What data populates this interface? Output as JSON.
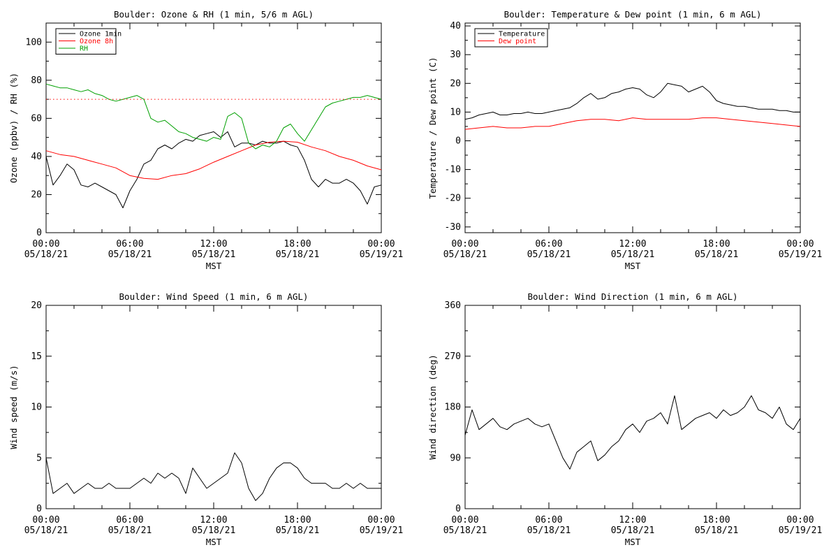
{
  "chart_data": [
    {
      "type": "line",
      "title": "Boulder: Ozone & RH (1 min, 5/6 m AGL)",
      "xlabel": "MST",
      "ylabel": "Ozone (ppbv) / RH (%)",
      "ylim": [
        0,
        110
      ],
      "yticks": [
        0,
        20,
        40,
        60,
        80,
        100
      ],
      "xticks": [
        "00:00\n05/18/21",
        "06:00\n05/18/21",
        "12:00\n05/18/21",
        "18:00\n05/18/21",
        "00:00\n05/19/21"
      ],
      "legend_position": "top-left",
      "grid": false,
      "series": [
        {
          "name": "Ozone 1min",
          "color": "#000000",
          "x": [
            0,
            0.5,
            1,
            1.5,
            2,
            2.5,
            3,
            3.5,
            4,
            4.5,
            5,
            5.5,
            6,
            6.5,
            7,
            7.5,
            8,
            8.5,
            9,
            9.5,
            10,
            10.5,
            11,
            11.5,
            12,
            12.5,
            13,
            13.5,
            14,
            14.5,
            15,
            15.5,
            16,
            16.5,
            17,
            17.5,
            18,
            18.5,
            19,
            19.5,
            20,
            20.5,
            21,
            21.5,
            22,
            22.5,
            23,
            23.5,
            24
          ],
          "y": [
            40,
            25,
            30,
            36,
            33,
            25,
            24,
            26,
            24,
            22,
            20,
            13,
            22,
            28,
            36,
            38,
            44,
            46,
            44,
            47,
            49,
            48,
            51,
            52,
            53,
            50,
            53,
            45,
            47,
            47,
            46,
            48,
            47,
            47,
            48,
            46,
            45,
            38,
            28,
            24,
            28,
            26,
            26,
            28,
            26,
            22,
            15,
            24,
            25
          ]
        },
        {
          "name": "Ozone 8h",
          "color": "#ff0000",
          "x": [
            0,
            1,
            2,
            3,
            4,
            5,
            6,
            7,
            8,
            9,
            10,
            11,
            12,
            13,
            14,
            15,
            16,
            17,
            18,
            19,
            20,
            21,
            22,
            23,
            24
          ],
          "y": [
            43,
            41,
            40,
            38,
            36,
            34,
            30,
            28.5,
            28,
            30,
            31,
            33.5,
            37,
            40,
            43,
            46,
            47.5,
            48,
            47.5,
            45,
            43,
            40,
            38,
            35,
            33
          ]
        },
        {
          "name": "RH",
          "color": "#00a000",
          "x": [
            0,
            0.5,
            1,
            1.5,
            2,
            2.5,
            3,
            3.5,
            4,
            4.5,
            5,
            5.5,
            6,
            6.5,
            7,
            7.5,
            8,
            8.5,
            9,
            9.5,
            10,
            10.5,
            11,
            11.5,
            12,
            12.5,
            13,
            13.5,
            14,
            14.5,
            15,
            15.5,
            16,
            16.5,
            17,
            17.5,
            18,
            18.5,
            19,
            19.5,
            20,
            20.5,
            21,
            21.5,
            22,
            22.5,
            23,
            23.5,
            24
          ],
          "y": [
            78,
            77,
            76,
            76,
            75,
            74,
            75,
            73,
            72,
            70,
            69,
            70,
            71,
            72,
            70,
            60,
            58,
            59,
            56,
            53,
            52,
            50,
            49,
            48,
            50,
            49,
            61,
            63,
            60,
            47,
            44,
            46,
            45,
            48,
            55,
            57,
            52,
            48,
            54,
            60,
            66,
            68,
            69,
            70,
            71,
            71,
            72,
            71,
            70
          ]
        },
        {
          "name": "",
          "color": "#ff0000",
          "dotted": true,
          "x": [
            0,
            24
          ],
          "y": [
            70,
            70
          ]
        }
      ]
    },
    {
      "type": "line",
      "title": "Boulder: Temperature & Dew point (1 min, 6 m AGL)",
      "xlabel": "MST",
      "ylabel": "Temperature / Dew point (C)",
      "ylim": [
        -32,
        41
      ],
      "yticks": [
        -30,
        -20,
        -10,
        0,
        10,
        20,
        30,
        40
      ],
      "xticks": [
        "00:00\n05/18/21",
        "06:00\n05/18/21",
        "12:00\n05/18/21",
        "18:00\n05/18/21",
        "00:00\n05/19/21"
      ],
      "legend_position": "top-left",
      "grid": false,
      "series": [
        {
          "name": "Temperature",
          "color": "#000000",
          "x": [
            0,
            0.5,
            1,
            1.5,
            2,
            2.5,
            3,
            3.5,
            4,
            4.5,
            5,
            5.5,
            6,
            6.5,
            7,
            7.5,
            8,
            8.5,
            9,
            9.5,
            10,
            10.5,
            11,
            11.5,
            12,
            12.5,
            13,
            13.5,
            14,
            14.5,
            15,
            15.5,
            16,
            16.5,
            17,
            17.5,
            18,
            18.5,
            19,
            19.5,
            20,
            20.5,
            21,
            21.5,
            22,
            22.5,
            23,
            23.5,
            24
          ],
          "y": [
            7.5,
            8,
            9,
            9.5,
            10,
            9,
            9,
            9.5,
            9.5,
            10,
            9.5,
            9.5,
            10,
            10.5,
            11,
            11.5,
            13,
            15,
            16.5,
            14.5,
            15,
            16.5,
            17,
            18,
            18.5,
            18,
            16,
            15,
            17,
            20,
            19.5,
            19,
            17,
            18,
            19,
            17,
            14,
            13,
            12.5,
            12,
            12,
            11.5,
            11,
            11,
            11,
            10.5,
            10.5,
            10,
            10
          ]
        },
        {
          "name": "Dew point",
          "color": "#ff0000",
          "x": [
            0,
            1,
            2,
            3,
            4,
            5,
            6,
            7,
            8,
            9,
            10,
            11,
            12,
            13,
            14,
            15,
            16,
            17,
            18,
            19,
            20,
            21,
            22,
            23,
            24
          ],
          "y": [
            4,
            4.5,
            5,
            4.5,
            4.5,
            5,
            5,
            6,
            7,
            7.5,
            7.5,
            7,
            8,
            7.5,
            7.5,
            7.5,
            7.5,
            8,
            8,
            7.5,
            7,
            6.5,
            6,
            5.5,
            5
          ]
        }
      ]
    },
    {
      "type": "line",
      "title": "Boulder: Wind Speed (1 min, 6 m AGL)",
      "xlabel": "MST",
      "ylabel": "Wind speed (m/s)",
      "ylim": [
        0,
        20
      ],
      "yticks": [
        0,
        5,
        10,
        15,
        20
      ],
      "xticks": [
        "00:00\n05/18/21",
        "06:00\n05/18/21",
        "12:00\n05/18/21",
        "18:00\n05/18/21",
        "00:00\n05/19/21"
      ],
      "grid": false,
      "series": [
        {
          "name": "",
          "color": "#000000",
          "x": [
            0,
            0.5,
            1,
            1.5,
            2,
            2.5,
            3,
            3.5,
            4,
            4.5,
            5,
            5.5,
            6,
            6.5,
            7,
            7.5,
            8,
            8.5,
            9,
            9.5,
            10,
            10.5,
            11,
            11.5,
            12,
            12.5,
            13,
            13.5,
            14,
            14.5,
            15,
            15.5,
            16,
            16.5,
            17,
            17.5,
            18,
            18.5,
            19,
            19.5,
            20,
            20.5,
            21,
            21.5,
            22,
            22.5,
            23,
            23.5,
            24
          ],
          "y": [
            5,
            1.5,
            2,
            2.5,
            1.5,
            2,
            2.5,
            2,
            2,
            2.5,
            2,
            2,
            2,
            2.5,
            3,
            2.5,
            3.5,
            3,
            3.5,
            3,
            1.5,
            4,
            3,
            2,
            2.5,
            3,
            3.5,
            5.5,
            4.5,
            2,
            0.8,
            1.5,
            3,
            4,
            4.5,
            4.5,
            4,
            3,
            2.5,
            2.5,
            2.5,
            2,
            2,
            2.5,
            2,
            2.5,
            2,
            2,
            2
          ]
        }
      ]
    },
    {
      "type": "line",
      "title": "Boulder: Wind Direction (1 min, 6 m AGL)",
      "xlabel": "MST",
      "ylabel": "Wind direction (deg)",
      "ylim": [
        0,
        360
      ],
      "yticks": [
        0,
        90,
        180,
        270,
        360
      ],
      "xticks": [
        "00:00\n05/18/21",
        "06:00\n05/18/21",
        "12:00\n05/18/21",
        "18:00\n05/18/21",
        "00:00\n05/19/21"
      ],
      "grid": false,
      "series": [
        {
          "name": "",
          "color": "#000000",
          "x": [
            0,
            0.5,
            1,
            1.5,
            2,
            2.5,
            3,
            3.5,
            4,
            4.5,
            5,
            5.5,
            6,
            6.5,
            7,
            7.5,
            8,
            8.5,
            9,
            9.5,
            10,
            10.5,
            11,
            11.5,
            12,
            12.5,
            13,
            13.5,
            14,
            14.5,
            15,
            15.5,
            16,
            16.5,
            17,
            17.5,
            18,
            18.5,
            19,
            19.5,
            20,
            20.5,
            21,
            21.5,
            22,
            22.5,
            23,
            23.5,
            24
          ],
          "y": [
            130,
            175,
            140,
            150,
            160,
            145,
            140,
            150,
            155,
            160,
            150,
            145,
            150,
            120,
            90,
            70,
            100,
            110,
            120,
            85,
            95,
            110,
            120,
            140,
            150,
            135,
            155,
            160,
            170,
            150,
            200,
            140,
            150,
            160,
            165,
            170,
            160,
            175,
            165,
            170,
            180,
            200,
            175,
            170,
            160,
            180,
            150,
            140,
            160
          ]
        }
      ]
    }
  ]
}
